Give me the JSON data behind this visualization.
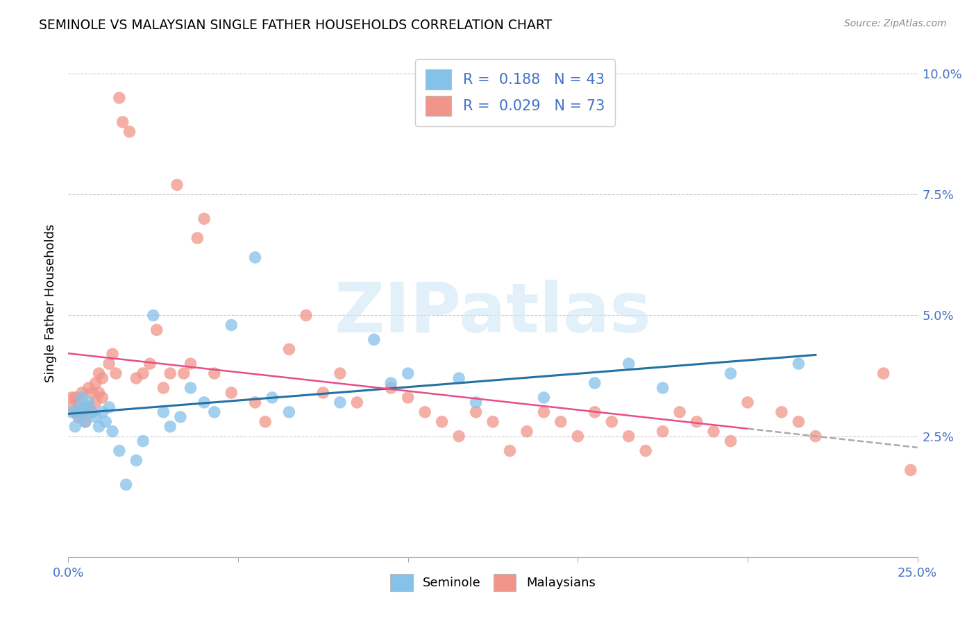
{
  "title": "SEMINOLE VS MALAYSIAN SINGLE FATHER HOUSEHOLDS CORRELATION CHART",
  "source": "Source: ZipAtlas.com",
  "xlim": [
    0.0,
    0.25
  ],
  "ylim": [
    0.0,
    0.105
  ],
  "ylabel": "Single Father Households",
  "legend_bottom": [
    "Seminole",
    "Malaysians"
  ],
  "seminole_color": "#85c1e9",
  "malaysian_color": "#f1948a",
  "seminole_line_color": "#2471a3",
  "malaysian_line_color": "#e74c8b",
  "R_seminole": 0.188,
  "N_seminole": 43,
  "R_malaysian": 0.029,
  "N_malaysian": 73,
  "watermark": "ZIPatlas",
  "grid_color": "#cccccc",
  "seminole_x": [
    0.001,
    0.002,
    0.003,
    0.003,
    0.004,
    0.004,
    0.005,
    0.005,
    0.006,
    0.007,
    0.008,
    0.009,
    0.01,
    0.011,
    0.012,
    0.013,
    0.015,
    0.017,
    0.02,
    0.022,
    0.025,
    0.028,
    0.03,
    0.033,
    0.036,
    0.04,
    0.043,
    0.048,
    0.055,
    0.06,
    0.065,
    0.08,
    0.09,
    0.095,
    0.1,
    0.115,
    0.12,
    0.14,
    0.155,
    0.165,
    0.175,
    0.195,
    0.215
  ],
  "seminole_y": [
    0.03,
    0.027,
    0.029,
    0.031,
    0.033,
    0.03,
    0.031,
    0.028,
    0.032,
    0.03,
    0.029,
    0.027,
    0.03,
    0.028,
    0.031,
    0.026,
    0.022,
    0.015,
    0.02,
    0.024,
    0.05,
    0.03,
    0.027,
    0.029,
    0.035,
    0.032,
    0.03,
    0.048,
    0.062,
    0.033,
    0.03,
    0.032,
    0.045,
    0.036,
    0.038,
    0.037,
    0.032,
    0.033,
    0.036,
    0.04,
    0.035,
    0.038,
    0.04
  ],
  "malaysian_x": [
    0.001,
    0.001,
    0.002,
    0.002,
    0.003,
    0.003,
    0.004,
    0.004,
    0.005,
    0.005,
    0.006,
    0.006,
    0.007,
    0.007,
    0.008,
    0.008,
    0.009,
    0.009,
    0.01,
    0.01,
    0.012,
    0.013,
    0.014,
    0.015,
    0.016,
    0.018,
    0.02,
    0.022,
    0.024,
    0.026,
    0.028,
    0.03,
    0.032,
    0.034,
    0.036,
    0.038,
    0.04,
    0.043,
    0.048,
    0.055,
    0.058,
    0.065,
    0.07,
    0.075,
    0.08,
    0.085,
    0.095,
    0.1,
    0.105,
    0.11,
    0.115,
    0.12,
    0.125,
    0.13,
    0.135,
    0.14,
    0.145,
    0.15,
    0.155,
    0.16,
    0.165,
    0.17,
    0.175,
    0.18,
    0.185,
    0.19,
    0.195,
    0.2,
    0.21,
    0.215,
    0.22,
    0.24,
    0.248
  ],
  "malaysian_y": [
    0.031,
    0.033,
    0.03,
    0.033,
    0.032,
    0.029,
    0.034,
    0.03,
    0.031,
    0.028,
    0.035,
    0.031,
    0.034,
    0.03,
    0.036,
    0.032,
    0.038,
    0.034,
    0.037,
    0.033,
    0.04,
    0.042,
    0.038,
    0.095,
    0.09,
    0.088,
    0.037,
    0.038,
    0.04,
    0.047,
    0.035,
    0.038,
    0.077,
    0.038,
    0.04,
    0.066,
    0.07,
    0.038,
    0.034,
    0.032,
    0.028,
    0.043,
    0.05,
    0.034,
    0.038,
    0.032,
    0.035,
    0.033,
    0.03,
    0.028,
    0.025,
    0.03,
    0.028,
    0.022,
    0.026,
    0.03,
    0.028,
    0.025,
    0.03,
    0.028,
    0.025,
    0.022,
    0.026,
    0.03,
    0.028,
    0.026,
    0.024,
    0.032,
    0.03,
    0.028,
    0.025,
    0.038,
    0.018
  ]
}
